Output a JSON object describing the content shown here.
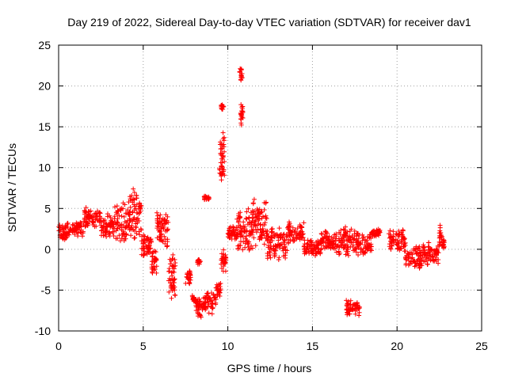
{
  "chart_data": {
    "type": "scatter",
    "title": "Day 219 of 2022, Sidereal Day-to-day VTEC variation (SDTVAR) for receiver dav1",
    "xlabel": "GPS time / hours",
    "ylabel": "SDTVAR / TECUs",
    "xlim": [
      0,
      25
    ],
    "ylim": [
      -10,
      25
    ],
    "xticks": [
      0,
      5,
      10,
      15,
      20,
      25
    ],
    "yticks": [
      -10,
      -5,
      0,
      5,
      10,
      15,
      20,
      25
    ],
    "grid": true,
    "marker": "+",
    "color": "#ff0000",
    "series": [
      {
        "name": "SDTVAR",
        "clusters": [
          {
            "x": [
              0.0,
              0.5
            ],
            "y": [
              1.0,
              3.2
            ]
          },
          {
            "x": [
              0.5,
              1.5
            ],
            "y": [
              1.5,
              3.5
            ]
          },
          {
            "x": [
              1.5,
              2.5
            ],
            "y": [
              2.5,
              5.2
            ]
          },
          {
            "x": [
              2.5,
              3.3
            ],
            "y": [
              1.0,
              4.5
            ]
          },
          {
            "x": [
              3.3,
              4.2
            ],
            "y": [
              0.5,
              6.0
            ]
          },
          {
            "x": [
              4.2,
              4.9
            ],
            "y": [
              1.0,
              7.5
            ]
          },
          {
            "x": [
              4.9,
              5.5
            ],
            "y": [
              -1.0,
              2.5
            ]
          },
          {
            "x": [
              5.5,
              5.8
            ],
            "y": [
              -3.2,
              0.0
            ]
          },
          {
            "x": [
              5.8,
              6.5
            ],
            "y": [
              0.0,
              4.8
            ]
          },
          {
            "x": [
              6.5,
              6.9
            ],
            "y": [
              -6.5,
              0.0
            ]
          },
          {
            "x": [
              7.5,
              7.8
            ],
            "y": [
              -4.5,
              -2.5
            ]
          },
          {
            "x": [
              7.9,
              8.1
            ],
            "y": [
              -6.5,
              -5.5
            ]
          },
          {
            "x": [
              8.2,
              8.4
            ],
            "y": [
              -2.0,
              -1.0
            ]
          },
          {
            "x": [
              8.1,
              8.5
            ],
            "y": [
              -8.5,
              -6.0
            ]
          },
          {
            "x": [
              8.5,
              9.3
            ],
            "y": [
              -8.0,
              -5.0
            ]
          },
          {
            "x": [
              8.6,
              8.9
            ],
            "y": [
              6.0,
              6.6
            ]
          },
          {
            "x": [
              9.3,
              9.6
            ],
            "y": [
              -6.0,
              -4.0
            ]
          },
          {
            "x": [
              9.6,
              9.9
            ],
            "y": [
              -3.0,
              0.0
            ]
          },
          {
            "x": [
              9.5,
              9.8
            ],
            "y": [
              8.0,
              14.5
            ]
          },
          {
            "x": [
              9.6,
              9.75
            ],
            "y": [
              17.0,
              17.8
            ]
          },
          {
            "x": [
              10.0,
              10.6
            ],
            "y": [
              1.0,
              3.0
            ]
          },
          {
            "x": [
              10.7,
              10.85
            ],
            "y": [
              20.5,
              22.5
            ]
          },
          {
            "x": [
              10.75,
              10.9
            ],
            "y": [
              15.0,
              18.0
            ]
          },
          {
            "x": [
              10.5,
              11.5
            ],
            "y": [
              -1.0,
              5.5
            ]
          },
          {
            "x": [
              11.5,
              12.3
            ],
            "y": [
              0.0,
              6.5
            ]
          },
          {
            "x": [
              12.3,
              13.5
            ],
            "y": [
              -2.0,
              3.0
            ]
          },
          {
            "x": [
              13.5,
              14.5
            ],
            "y": [
              0.5,
              3.5
            ]
          },
          {
            "x": [
              14.5,
              15.5
            ],
            "y": [
              -1.0,
              1.5
            ]
          },
          {
            "x": [
              15.5,
              16.5
            ],
            "y": [
              -0.5,
              2.5
            ]
          },
          {
            "x": [
              16.5,
              17.5
            ],
            "y": [
              -1.0,
              3.0
            ]
          },
          {
            "x": [
              17.5,
              18.5
            ],
            "y": [
              -1.0,
              2.5
            ]
          },
          {
            "x": [
              17.0,
              17.8
            ],
            "y": [
              -8.2,
              -6.2
            ]
          },
          {
            "x": [
              18.5,
              19.0
            ],
            "y": [
              1.5,
              2.5
            ]
          },
          {
            "x": [
              19.5,
              20.5
            ],
            "y": [
              -0.5,
              2.5
            ]
          },
          {
            "x": [
              20.5,
              21.5
            ],
            "y": [
              -2.5,
              0.5
            ]
          },
          {
            "x": [
              21.5,
              22.5
            ],
            "y": [
              -2.0,
              1.0
            ]
          },
          {
            "x": [
              22.5,
              22.8
            ],
            "y": [
              0.0,
              3.2
            ]
          }
        ]
      }
    ]
  }
}
